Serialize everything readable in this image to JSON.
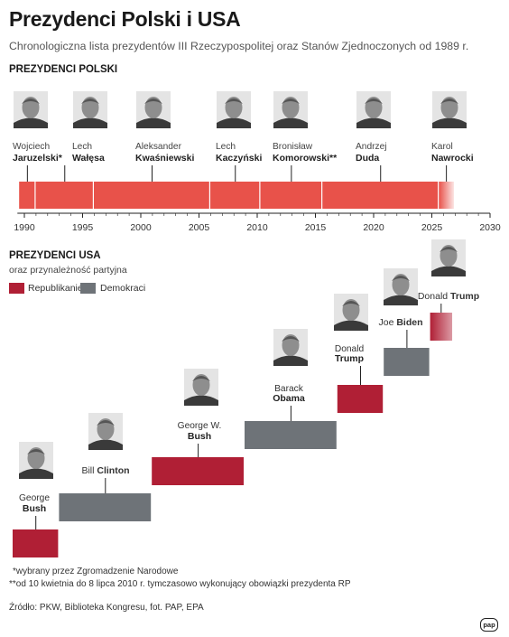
{
  "header": {
    "title": "Prezydenci Polski i USA",
    "subtitle": "Chronologiczna lista prezydentów III Rzeczypospolitej oraz Stanów Zjednoczonych od 1989 r."
  },
  "poland": {
    "section_title": "PREZYDENCI POLSKI"
  },
  "usa": {
    "section_title": "PREZYDENCI USA",
    "subtitle": "oraz przynależność partyjna"
  },
  "colors": {
    "poland_bar": "#e8524a",
    "republican": "#b01f35",
    "democrat": "#6e7378",
    "axis": "#222222",
    "photo_bg": "#e4e4e4",
    "photo_fg": "#3a3a3a"
  },
  "footer": {
    "note1": "*wybrany przez Zgromadzenie Narodowe",
    "note2": "**od 10 kwietnia do 8 lipca 2010 r. tymczasowo wykonujący obowiązki prezydenta RP",
    "source": "Źródło: PKW, Biblioteka Kongresu, fot. PAP, EPA",
    "logo": "pap"
  },
  "chart_data": [
    {
      "type": "bar",
      "title": "PREZYDENCI POLSKI",
      "xlim": [
        1989,
        2030
      ],
      "ticks": [
        1990,
        1995,
        2000,
        2005,
        2010,
        2015,
        2020,
        2025,
        2030
      ],
      "series": [
        {
          "first": "Wojciech",
          "last": "Jaruzelski*",
          "start": 1989.55,
          "end": 1990.97
        },
        {
          "first": "Lech",
          "last": "Wałęsa",
          "start": 1990.97,
          "end": 1995.97
        },
        {
          "first": "Aleksander",
          "last": "Kwaśniewski",
          "start": 1995.97,
          "end": 2005.97
        },
        {
          "first": "Lech",
          "last": "Kaczyński",
          "start": 2005.97,
          "end": 2010.27
        },
        {
          "first": "Bronisław",
          "last": "Komorowski**",
          "start": 2010.27,
          "end": 2015.6
        },
        {
          "first": "Andrzej",
          "last": "Duda",
          "start": 2015.6,
          "end": 2025.6
        },
        {
          "first": "Karol",
          "last": "Nawrocki",
          "start": 2025.6,
          "end": 2026.9
        }
      ]
    },
    {
      "type": "bar",
      "title": "PREZYDENCI USA",
      "subtitle": "oraz przynależność partyjna",
      "legend": [
        {
          "party": "R",
          "label": "Republikanie"
        },
        {
          "party": "D",
          "label": "Demokraci"
        }
      ],
      "series": [
        {
          "first": "George",
          "last": "Bush",
          "party": "R",
          "start": 1989,
          "end": 1993
        },
        {
          "first": "Bill",
          "last": "Clinton",
          "party": "D",
          "start": 1993,
          "end": 2001
        },
        {
          "first": "George W.",
          "last": "Bush",
          "party": "R",
          "start": 2001,
          "end": 2009
        },
        {
          "first": "Barack",
          "last": "Obama",
          "party": "D",
          "start": 2009,
          "end": 2017
        },
        {
          "first": "Donald",
          "last": "Trump",
          "party": "R",
          "start": 2017,
          "end": 2021
        },
        {
          "first": "Joe",
          "last": "Biden",
          "party": "D",
          "start": 2021,
          "end": 2025
        },
        {
          "first": "Donald",
          "last": "Trump",
          "party": "R",
          "start": 2025,
          "end": 2026.9
        }
      ]
    }
  ]
}
